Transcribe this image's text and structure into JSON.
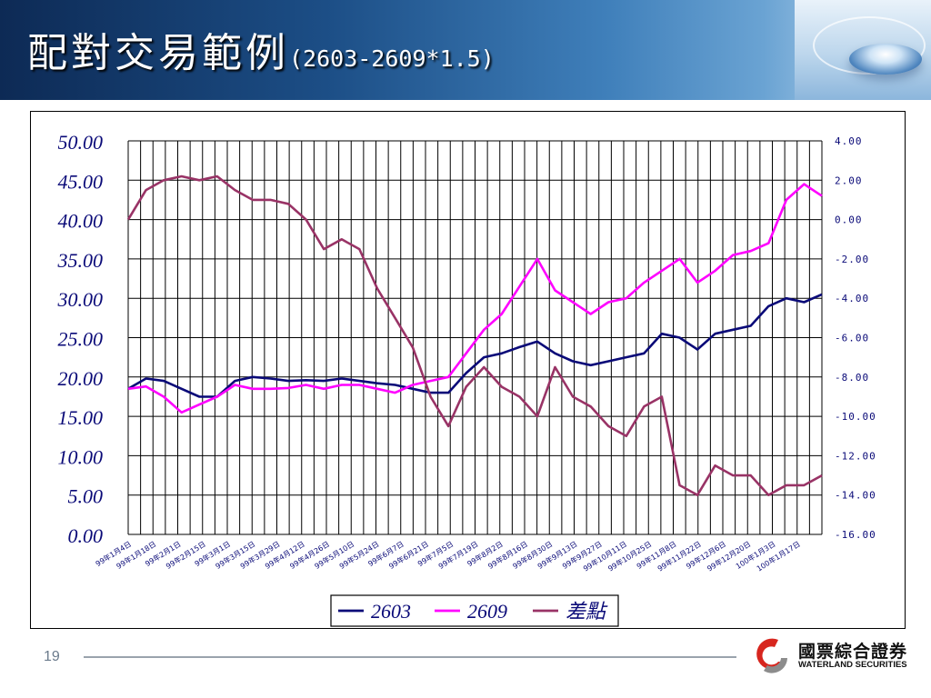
{
  "slide": {
    "title_main": "配對交易範例",
    "title_sub": "(2603-2609*1.5)",
    "page_number": "19"
  },
  "logo": {
    "chinese_name": "國票綜合證券",
    "english_name": "WATERLAND SECURITIES",
    "colors": {
      "red": "#d7261e",
      "gray": "#8c8c8c"
    }
  },
  "chart_data": {
    "type": "line",
    "x_tick_labels": [
      "99年1月4日",
      "99年1月18日",
      "99年2月1日",
      "99年2月15日",
      "99年3月1日",
      "99年3月15日",
      "99年3月29日",
      "99年4月12日",
      "99年4月26日",
      "99年5月10日",
      "99年5月24日",
      "99年6月7日",
      "99年6月21日",
      "99年7月5日",
      "99年7月19日",
      "99年8月2日",
      "99年8月16日",
      "99年8月30日",
      "99年9月13日",
      "99年9月27日",
      "99年10月11日",
      "99年10月25日",
      "99年11月8日",
      "99年11月22日",
      "99年12月6日",
      "99年12月20日",
      "100年1月3日",
      "100年1月17日"
    ],
    "y_left": {
      "ylim": [
        0,
        50
      ],
      "ticks": [
        "0.00",
        "5.00",
        "10.00",
        "15.00",
        "20.00",
        "25.00",
        "30.00",
        "35.00",
        "40.00",
        "45.00",
        "50.00"
      ]
    },
    "y_right": {
      "ylim": [
        -16,
        4
      ],
      "ticks": [
        "-16.00",
        "-14.00",
        "-12.00",
        "-10.00",
        "-8.00",
        "-6.00",
        "-4.00",
        "-2.00",
        "0.00",
        "2.00",
        "4.00"
      ]
    },
    "grid": true,
    "legend_position": "bottom",
    "series": [
      {
        "name": "2603",
        "axis": "left",
        "color": "#0a0a78",
        "values": [
          18.5,
          19.8,
          19.5,
          18.5,
          17.5,
          17.5,
          19.5,
          20.0,
          19.8,
          19.5,
          19.6,
          19.5,
          19.8,
          19.5,
          19.2,
          19.0,
          18.5,
          18.0,
          18.0,
          20.5,
          22.5,
          23.0,
          23.8,
          24.5,
          23.0,
          22.0,
          21.5,
          22.0,
          22.5,
          23.0,
          25.5,
          25.0,
          23.5,
          25.5,
          26.0,
          26.5,
          29.0,
          30.0,
          29.5,
          30.5
        ]
      },
      {
        "name": "2609",
        "axis": "left",
        "color": "#ff00ff",
        "values": [
          18.5,
          18.8,
          17.5,
          15.5,
          16.5,
          17.5,
          19.0,
          18.5,
          18.5,
          18.6,
          19.0,
          18.5,
          19.0,
          19.0,
          18.5,
          18.0,
          19.0,
          19.5,
          20.0,
          23.0,
          26.0,
          28.0,
          31.5,
          35.0,
          31.0,
          29.5,
          28.0,
          29.5,
          30.0,
          32.0,
          33.5,
          35.0,
          32.0,
          33.5,
          35.5,
          36.0,
          37.0,
          42.5,
          44.5,
          43.0
        ]
      },
      {
        "name": "差點",
        "axis": "right",
        "color": "#993366",
        "values": [
          0.0,
          1.5,
          2.0,
          2.2,
          2.0,
          2.2,
          1.5,
          1.0,
          1.0,
          0.8,
          0.0,
          -1.5,
          -1.0,
          -1.5,
          -3.5,
          -5.0,
          -6.5,
          -9.0,
          -10.5,
          -8.5,
          -7.5,
          -8.5,
          -9.0,
          -10.0,
          -7.5,
          -9.0,
          -9.5,
          -10.5,
          -11.0,
          -9.5,
          -9.0,
          -13.5,
          -14.0,
          -12.5,
          -13.0,
          -13.0,
          -14.0,
          -13.5,
          -13.5,
          -13.0
        ]
      }
    ]
  }
}
